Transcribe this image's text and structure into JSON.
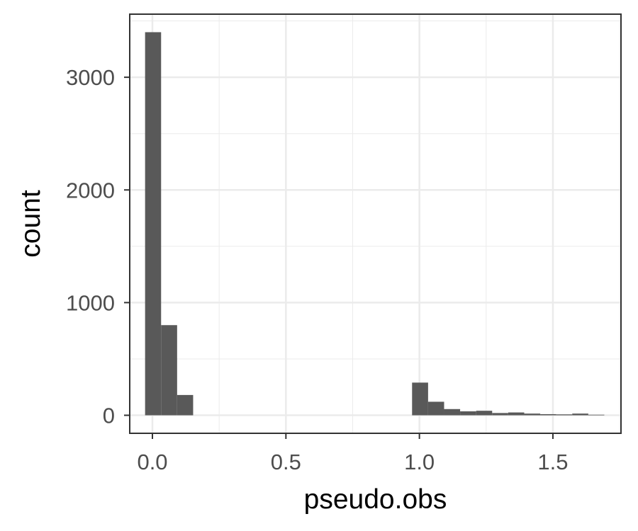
{
  "chart_data": {
    "type": "histogram",
    "xlabel": "pseudo.obs",
    "ylabel": "count",
    "xlim": [
      -0.085,
      1.755
    ],
    "ylim": [
      -160,
      3560
    ],
    "x_major_ticks": [
      0.0,
      0.5,
      1.0,
      1.5
    ],
    "x_tick_labels": [
      "0.0",
      "0.5",
      "1.0",
      "1.5"
    ],
    "x_minor_ticks": [
      0.25,
      0.75,
      1.25,
      1.75
    ],
    "y_major_ticks": [
      0,
      1000,
      2000,
      3000
    ],
    "y_tick_labels": [
      "0",
      "1000",
      "2000",
      "3000"
    ],
    "y_minor_ticks": [
      500,
      1500,
      2500,
      3500
    ],
    "grid": true,
    "theme": "bw",
    "bar_color": "#595959",
    "bins": [
      {
        "x0": -0.0275,
        "x1": 0.0325,
        "count": 3400
      },
      {
        "x0": 0.0325,
        "x1": 0.0925,
        "count": 800
      },
      {
        "x0": 0.0925,
        "x1": 0.1525,
        "count": 180
      },
      {
        "x0": 0.9725,
        "x1": 1.0325,
        "count": 290
      },
      {
        "x0": 1.0325,
        "x1": 1.0925,
        "count": 120
      },
      {
        "x0": 1.0925,
        "x1": 1.1525,
        "count": 55
      },
      {
        "x0": 1.1525,
        "x1": 1.2125,
        "count": 35
      },
      {
        "x0": 1.2125,
        "x1": 1.2725,
        "count": 40
      },
      {
        "x0": 1.2725,
        "x1": 1.3325,
        "count": 20
      },
      {
        "x0": 1.3325,
        "x1": 1.3925,
        "count": 25
      },
      {
        "x0": 1.3925,
        "x1": 1.4525,
        "count": 15
      },
      {
        "x0": 1.4525,
        "x1": 1.5125,
        "count": 10
      },
      {
        "x0": 1.5125,
        "x1": 1.5725,
        "count": 8
      },
      {
        "x0": 1.5725,
        "x1": 1.6325,
        "count": 15
      },
      {
        "x0": 1.6325,
        "x1": 1.6925,
        "count": 5
      }
    ]
  }
}
